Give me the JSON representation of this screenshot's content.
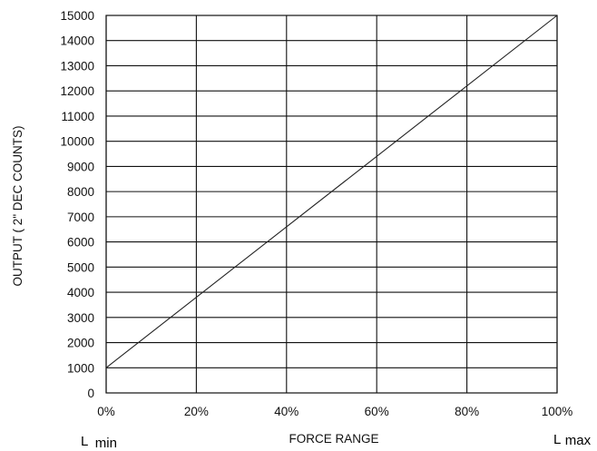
{
  "chart_data": {
    "type": "line",
    "xlabel": "FORCE RANGE",
    "ylabel": "OUTPUT ( 2\" DEC COUNTS)",
    "x_tick_labels": [
      "0%",
      "20%",
      "40%",
      "60%",
      "80%",
      "100%"
    ],
    "y_ticks": [
      0,
      1000,
      2000,
      3000,
      4000,
      5000,
      6000,
      7000,
      8000,
      9000,
      10000,
      11000,
      12000,
      13000,
      14000,
      15000
    ],
    "xlim": [
      0,
      100
    ],
    "ylim": [
      0,
      15000
    ],
    "grid": true,
    "series": [
      {
        "x": [
          0,
          100
        ],
        "y": [
          1000,
          15000
        ],
        "color": "#222222"
      }
    ],
    "annotations": {
      "lmin": {
        "base": "L",
        "sub": "min"
      },
      "lmax": {
        "base": "L",
        "sub": "max"
      }
    }
  }
}
